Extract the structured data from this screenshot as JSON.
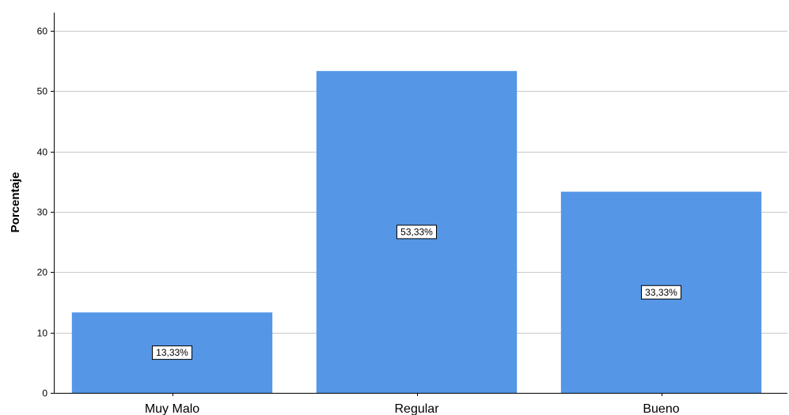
{
  "chart_data": {
    "type": "bar",
    "categories": [
      "Muy Malo",
      "Regular",
      "Bueno"
    ],
    "values": [
      13.33,
      53.33,
      33.33
    ],
    "data_labels": [
      "13,33%",
      "53,33%",
      "33,33%"
    ],
    "title": "",
    "xlabel": "",
    "ylabel": "Porcentaje",
    "ylim": [
      0,
      63
    ],
    "yticks": [
      0,
      10,
      20,
      30,
      40,
      50,
      60
    ],
    "grid": true,
    "legend": "none",
    "colors": {
      "bar": "#5596e6",
      "grid": "#c8c8c8",
      "axis": "#000000"
    }
  }
}
